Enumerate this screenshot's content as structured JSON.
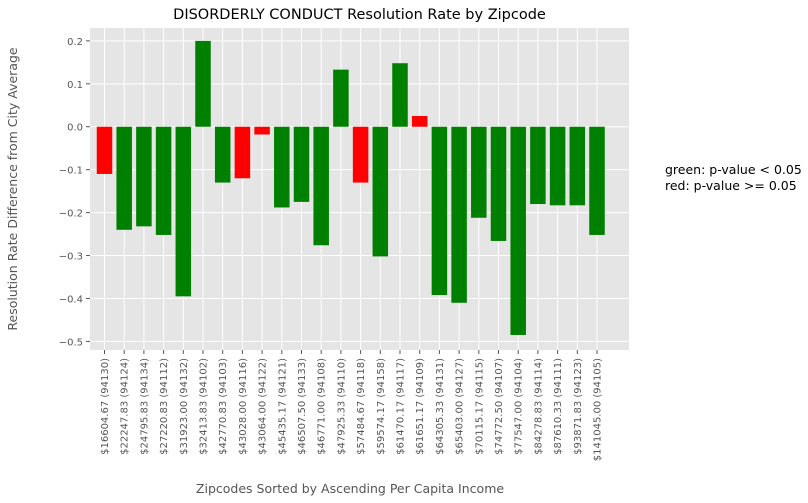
{
  "chart_data": {
    "type": "bar",
    "title": "DISORDERLY CONDUCT Resolution Rate by Zipcode",
    "xlabel": "Zipcodes Sorted by Ascending Per Capita Income",
    "ylabel": "Resolution Rate Difference from City Average",
    "ylim": [
      -0.52,
      0.23
    ],
    "yticks": [
      0.2,
      0.1,
      0.0,
      -0.1,
      -0.2,
      -0.3,
      -0.4,
      -0.5
    ],
    "ytick_labels": [
      "0.2",
      "0.1",
      "0.0",
      "−0.1",
      "−0.2",
      "−0.3",
      "−0.4",
      "−0.5"
    ],
    "grid": true,
    "colors": {
      "significant": "#008000",
      "not_significant": "#ff0000",
      "background": "#e5e5e5",
      "grid": "#ffffff"
    },
    "categories": [
      "$16604.67  (94130)",
      "$22247.83  (94124)",
      "$24795.83  (94134)",
      "$27220.83  (94112)",
      "$31923.00  (94132)",
      "$32413.83  (94102)",
      "$42770.83  (94103)",
      "$43028.00  (94116)",
      "$43064.00  (94122)",
      "$45435.17  (94121)",
      "$46507.50  (94133)",
      "$46771.00  (94108)",
      "$47925.33  (94110)",
      "$57484.67  (94118)",
      "$59574.17  (94158)",
      "$61470.17  (94117)",
      "$61651.17  (94109)",
      "$64305.33  (94131)",
      "$65403.00  (94127)",
      "$70115.17  (94115)",
      "$74772.50  (94107)",
      "$77547.00  (94104)",
      "$84278.83  (94114)",
      "$87610.33  (94111)",
      "$93871.83  (94123)",
      "$141045.00  (94105)"
    ],
    "values": [
      -0.11,
      -0.24,
      -0.232,
      -0.252,
      -0.395,
      0.2,
      -0.13,
      -0.12,
      -0.018,
      -0.188,
      -0.175,
      -0.276,
      0.133,
      -0.13,
      -0.302,
      0.148,
      0.025,
      -0.392,
      -0.41,
      -0.212,
      -0.266,
      -0.485,
      -0.18,
      -0.183,
      -0.183,
      -0.252
    ],
    "significant": [
      false,
      true,
      true,
      true,
      true,
      true,
      true,
      false,
      false,
      true,
      true,
      true,
      true,
      false,
      true,
      true,
      false,
      true,
      true,
      true,
      true,
      true,
      true,
      true,
      true,
      true
    ]
  },
  "legend_note": {
    "line1": "green: p-value < 0.05",
    "line2": "red: p-value >= 0.05"
  }
}
